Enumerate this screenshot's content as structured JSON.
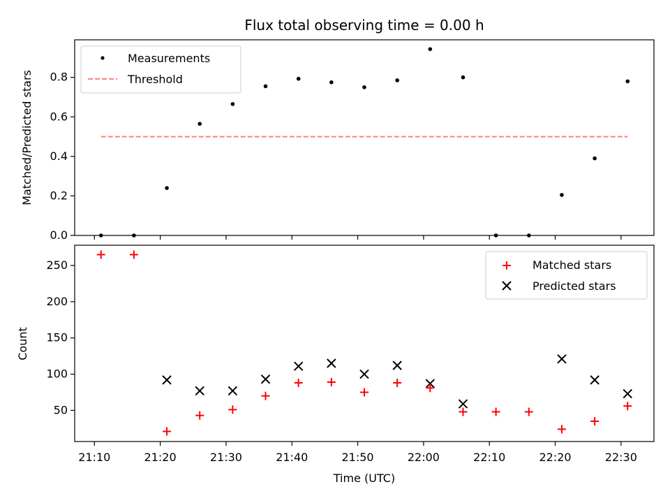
{
  "chart_data": [
    {
      "type": "scatter",
      "title": "Flux total observing time = 0.00 h",
      "xlabel": "",
      "ylabel": "Matched/Predicted stars",
      "ylim": [
        0.0,
        0.99
      ],
      "yticks": [
        "0.0",
        "0.2",
        "0.4",
        "0.6",
        "0.8"
      ],
      "x": [
        "21:11",
        "21:16",
        "21:21",
        "21:26",
        "21:31",
        "21:36",
        "21:41",
        "21:46",
        "21:51",
        "21:56",
        "22:01",
        "22:06",
        "22:11",
        "22:16",
        "22:21",
        "22:26",
        "22:31"
      ],
      "series": [
        {
          "name": "Measurements",
          "marker": "dot",
          "color": "#000000",
          "values": [
            0.0,
            0.0,
            0.24,
            0.565,
            0.665,
            0.755,
            0.793,
            0.775,
            0.75,
            0.785,
            0.943,
            0.8,
            0.0,
            0.0,
            0.205,
            0.39,
            0.78
          ]
        },
        {
          "name": "Threshold",
          "marker": "dashed-line",
          "color": "#ff7f7f",
          "x_range": [
            "21:11",
            "22:31"
          ],
          "value": 0.5
        }
      ],
      "legend": "top-left",
      "grid": false
    },
    {
      "type": "scatter",
      "title": "",
      "xlabel": "Time (UTC)",
      "ylabel": "Count",
      "ylim": [
        7,
        278
      ],
      "xlim": [
        "21:07",
        "22:35"
      ],
      "yticks": [
        "50",
        "100",
        "150",
        "200",
        "250"
      ],
      "xticks": [
        "21:10",
        "21:20",
        "21:30",
        "21:40",
        "21:50",
        "22:00",
        "22:10",
        "22:20",
        "22:30"
      ],
      "x": [
        "21:11",
        "21:16",
        "21:21",
        "21:26",
        "21:31",
        "21:36",
        "21:41",
        "21:46",
        "21:51",
        "21:56",
        "22:01",
        "22:06",
        "22:11",
        "22:16",
        "22:21",
        "22:26",
        "22:31"
      ],
      "series": [
        {
          "name": "Matched stars",
          "marker": "plus",
          "color": "#ff0000",
          "values": [
            265,
            265,
            21,
            43,
            51,
            70,
            88,
            89,
            75,
            88,
            81,
            48,
            48,
            48,
            24,
            35,
            56
          ]
        },
        {
          "name": "Predicted stars",
          "marker": "x",
          "color": "#000000",
          "values": [
            null,
            null,
            92,
            77,
            77,
            93,
            111,
            115,
            100,
            112,
            87,
            59,
            null,
            null,
            121,
            92,
            73
          ]
        }
      ],
      "legend": "top-right",
      "grid": false
    }
  ]
}
